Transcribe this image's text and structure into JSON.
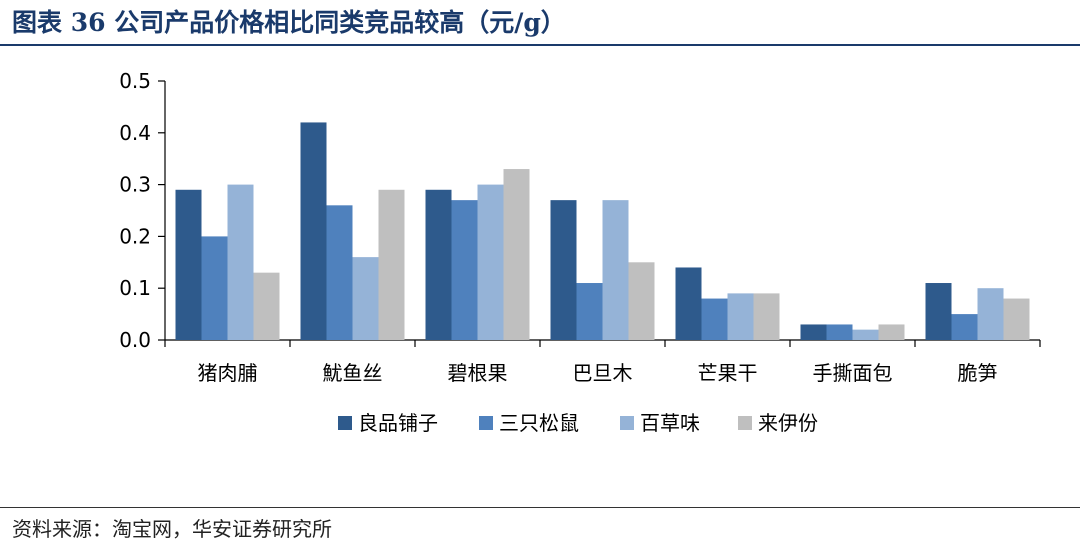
{
  "header": {
    "title": "图表 36 公司产品价格相比同类竞品较高（元/g）"
  },
  "footer": {
    "source": "资料来源：淘宝网，华安证券研究所"
  },
  "colors": {
    "title": "#1a3a6b"
  },
  "chart_data": {
    "type": "bar",
    "title": "",
    "xlabel": "",
    "ylabel": "",
    "ylim": [
      0,
      0.5
    ],
    "yticks": [
      "0.0",
      "0.1",
      "0.2",
      "0.3",
      "0.4",
      "0.5"
    ],
    "grid": false,
    "legend": "bottom",
    "categories": [
      "猪肉脯",
      "魷鱼丝",
      "碧根果",
      "巴旦木",
      "芒果干",
      "手撕面包",
      "脆笋"
    ],
    "series": [
      {
        "name": "良品铺子",
        "color": "#2e5a8c",
        "values": [
          0.29,
          0.42,
          0.29,
          0.27,
          0.14,
          0.03,
          0.11
        ]
      },
      {
        "name": "三只松鼠",
        "color": "#4f81bd",
        "values": [
          0.2,
          0.26,
          0.27,
          0.11,
          0.08,
          0.03,
          0.05
        ]
      },
      {
        "name": "百草味",
        "color": "#95b3d7",
        "values": [
          0.3,
          0.16,
          0.3,
          0.27,
          0.09,
          0.02,
          0.1
        ]
      },
      {
        "name": "来伊份",
        "color": "#bfbfbf",
        "values": [
          0.13,
          0.29,
          0.33,
          0.15,
          0.09,
          0.03,
          0.08
        ]
      }
    ]
  }
}
